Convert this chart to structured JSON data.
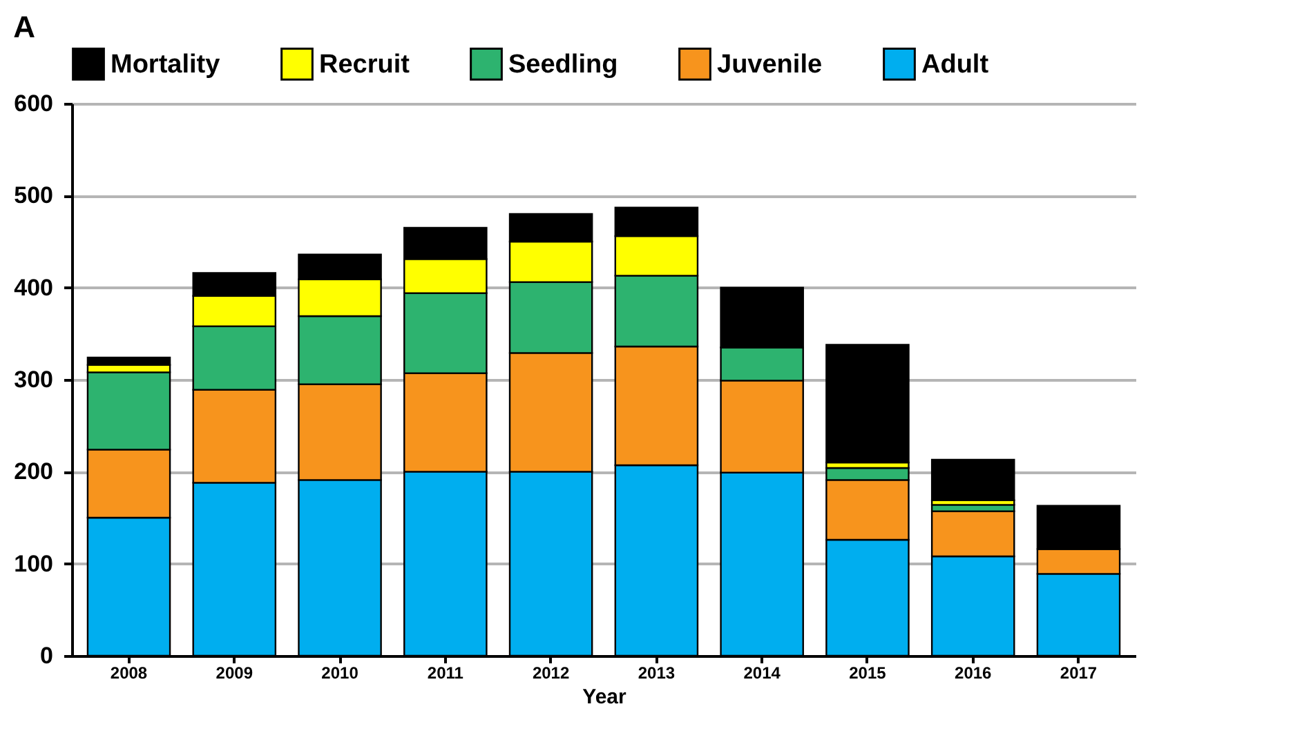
{
  "chart_data": {
    "type": "bar",
    "title": "A",
    "xlabel": "Year",
    "stacked": true,
    "grid": "y",
    "legend": "top",
    "categories": [
      "2008",
      "2009",
      "2010",
      "2011",
      "2012",
      "2013",
      "2014",
      "2015",
      "2016",
      "2017"
    ],
    "ylim": [
      0,
      600
    ],
    "yticks": [
      0,
      100,
      200,
      300,
      400,
      500,
      600
    ],
    "series": [
      {
        "name": "Adult",
        "color": "#00aeef",
        "values": [
          150,
          188,
          191,
          200,
          200,
          207,
          199,
          126,
          108,
          89
        ]
      },
      {
        "name": "Juvenile",
        "color": "#f7941d",
        "values": [
          74,
          101,
          104,
          107,
          129,
          129,
          100,
          65,
          49,
          27
        ]
      },
      {
        "name": "Seedling",
        "color": "#2db36f",
        "values": [
          84,
          69,
          74,
          87,
          77,
          77,
          36,
          13,
          7,
          0
        ]
      },
      {
        "name": "Recruit",
        "color": "#ffff00",
        "values": [
          8,
          33,
          40,
          37,
          44,
          43,
          0,
          6,
          5,
          0
        ]
      },
      {
        "name": "Mortality",
        "color": "#000000",
        "values": [
          8,
          25,
          27,
          34,
          30,
          31,
          65,
          128,
          44,
          47
        ]
      }
    ]
  }
}
